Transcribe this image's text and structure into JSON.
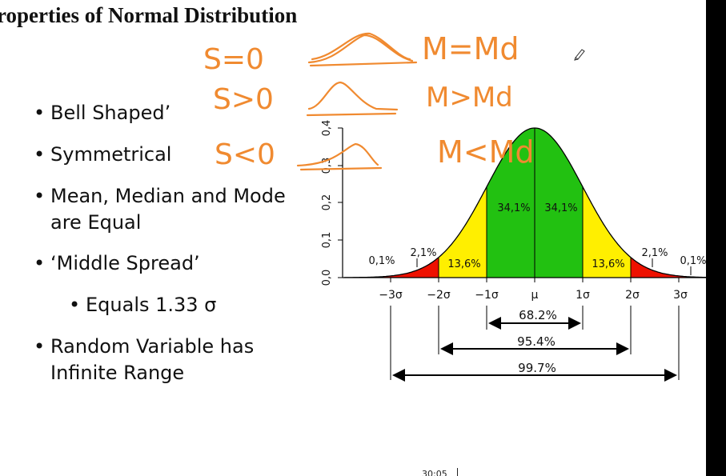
{
  "slide": {
    "title": "roperties of Normal Distribution",
    "bullets": [
      {
        "text": "Bell Shaped’"
      },
      {
        "text": "Symmetrical"
      },
      {
        "text": "Mean, Median and Mode",
        "text2": "are Equal"
      },
      {
        "text": " ‘Middle Spread’"
      },
      {
        "text": "Equals 1.33 σ",
        "sub": true
      },
      {
        "text": "Random Variable  has",
        "text2": "Infinite Range"
      }
    ]
  },
  "annotations": [
    {
      "skew": "S=0",
      "relation": "M=Md"
    },
    {
      "skew": "S>0",
      "relation": "M>Md"
    },
    {
      "skew": "S<0",
      "relation": "M<Md"
    }
  ],
  "diagram": {
    "y_ticks": [
      "0,0",
      "0,1",
      "0,2",
      "0,3",
      "0,4"
    ],
    "x_ticks": [
      "−3σ",
      "−2σ",
      "−1σ",
      "μ",
      "1σ",
      "2σ",
      "3σ"
    ],
    "region_labels": {
      "tail_left": "0,1%",
      "outer_left": "2,1%",
      "mid_left": "13,6%",
      "inner_left": "34,1%",
      "inner_right": "34,1%",
      "mid_right": "13,6%",
      "outer_right": "2,1%",
      "tail_right": "0,1%"
    },
    "ranges": [
      "68.2%",
      "95.4%",
      "99.7%"
    ],
    "colors": {
      "inner": "#22c111",
      "middle": "#ffef00",
      "outer": "#ee1100",
      "ink": "#f08a30"
    }
  },
  "video": {
    "timestamp": "30:05"
  }
}
